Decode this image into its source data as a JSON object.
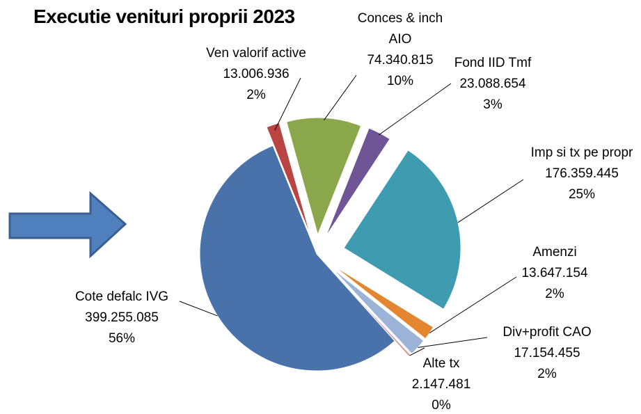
{
  "chart_data": {
    "type": "pie",
    "title": "Executie venituri proprii 2023",
    "categories": [
      "Ven valorif active",
      "Conces & inch AIO",
      "Fond IID Tmf",
      "Imp si tx pe propr",
      "Amenzi",
      "Div+profit CAO",
      "Alte tx",
      "Cote defalc IVG"
    ],
    "values": [
      13006936,
      74340815,
      23088654,
      176359445,
      13647154,
      17154455,
      2147481,
      399255085
    ],
    "value_labels": [
      "13.006.936",
      "74.340.815",
      "23.088.654",
      "176.359.445",
      "13.647.154",
      "17.154.455",
      "2.147.481",
      "399.255.085"
    ],
    "percent_labels": [
      "2%",
      "10%",
      "3%",
      "25%",
      "2%",
      "2%",
      "0%",
      "56%"
    ],
    "colors": [
      "#b94442",
      "#8aa84b",
      "#6f5596",
      "#3f9bb0",
      "#e3862f",
      "#9cb3d8",
      "#d89393",
      "#4a72aa"
    ]
  }
}
